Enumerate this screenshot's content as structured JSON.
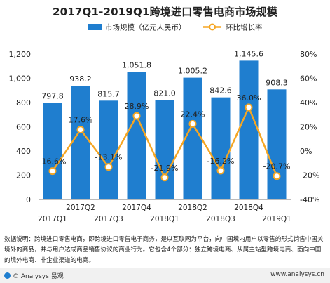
{
  "chart_data": {
    "type": "bar",
    "title": "2017Q1-2019Q1跨境进口零售电商市场规模",
    "categories": [
      "2017Q1",
      "2017Q2",
      "2017Q3",
      "2017Q4",
      "2018Q1",
      "2018Q2",
      "2018Q3",
      "2018Q4",
      "2019Q1"
    ],
    "series": [
      {
        "name": "市场规模（亿元人民币）",
        "type": "bar",
        "axis": "left",
        "values": [
          797.8,
          938.2,
          815.7,
          1051.8,
          821.0,
          1005.2,
          842.6,
          1145.6,
          908.3
        ],
        "labels": [
          "797.8",
          "938.2",
          "815.7",
          "1,051.8",
          "821.0",
          "1,005.2",
          "842.6",
          "1,145.6",
          "908.3"
        ]
      },
      {
        "name": "环比增长率",
        "type": "line",
        "axis": "right",
        "values": [
          -16.6,
          17.6,
          -13.1,
          28.9,
          -21.9,
          22.4,
          -16.2,
          36.0,
          -20.7
        ],
        "labels": [
          "-16.6%",
          "17.6%",
          "-13.1%",
          "28.9%",
          "-21.9%",
          "22.4%",
          "-16.2%",
          "36.0%",
          "-20.7%"
        ]
      }
    ],
    "ylim_left": [
      0,
      1200
    ],
    "yticks_left": [
      "0",
      "200",
      "400",
      "600",
      "800",
      "1,000",
      "1,200"
    ],
    "ylim_right": [
      -40,
      80
    ],
    "yticks_right": [
      "-40%",
      "-20%",
      "0%",
      "20%",
      "40%",
      "60%",
      "80%"
    ],
    "legend_position": "top",
    "grid": false,
    "colors": {
      "bar": "#1f7ecf",
      "line": "#f5a623",
      "marker_fill": "#ffffff",
      "text": "#222222"
    }
  },
  "notes": "数据说明：跨境进口零售电商，即跨境进口零售电子商务，是以互联网为平台，向中国境内用户以零售的形式销售中国关境外的商品，并与用户达成商品销售协议的商业行为。它包含4个部分：独立跨境电商、从属主站型跨境电商、面向中国的境外电商、非企业渠道的电商。",
  "footer": {
    "brand": "© Analysys 易观",
    "website": "www.analysys.cn"
  }
}
